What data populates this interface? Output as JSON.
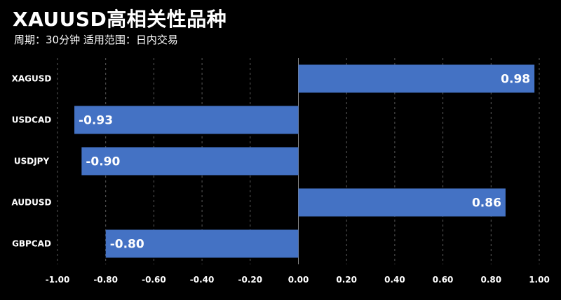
{
  "header": {
    "title": "XAUUSD高相关性品种",
    "subtitle": "周期：30分钟  适用范围：日内交易"
  },
  "colors": {
    "bar": "#4472c4",
    "background": "#000000",
    "text": "#ffffff"
  },
  "chart_data": {
    "type": "bar",
    "orientation": "horizontal",
    "title": "XAUUSD高相关性品种",
    "subtitle": "周期：30分钟  适用范围：日内交易",
    "categories": [
      "XAGUSD",
      "USDCAD",
      "USDJPY",
      "AUDUSD",
      "GBPCAD"
    ],
    "values": [
      0.98,
      -0.93,
      -0.9,
      0.86,
      -0.8
    ],
    "data_labels": [
      "0.98",
      "-0.93",
      "-0.90",
      "0.86",
      "-0.80"
    ],
    "xlim": [
      -1.0,
      1.0
    ],
    "x_ticks": [
      -1.0,
      -0.8,
      -0.6,
      -0.4,
      -0.2,
      0.0,
      0.2,
      0.4,
      0.6,
      0.8,
      1.0
    ],
    "x_tick_labels": [
      "-1.00",
      "-0.80",
      "-0.60",
      "-0.40",
      "-0.20",
      "0.00",
      "0.20",
      "0.40",
      "0.60",
      "0.80",
      "1.00"
    ],
    "grid": true,
    "legend": "none"
  }
}
